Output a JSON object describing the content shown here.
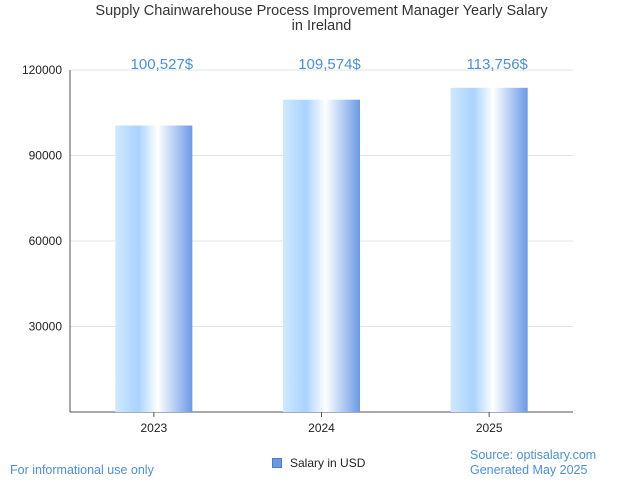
{
  "chart_data": {
    "type": "bar",
    "title_line1": "Supply Chainwarehouse Process Improvement Manager Yearly Salary",
    "title_line2": "in Ireland",
    "categories": [
      "2023",
      "2024",
      "2025"
    ],
    "series": [
      {
        "name": "Salary in USD",
        "values": [
          100527,
          109574,
          113756
        ]
      }
    ],
    "data_labels": [
      "100,527$",
      "109,574$",
      "113,756$"
    ],
    "y_ticks": [
      30000,
      60000,
      90000,
      120000
    ],
    "ylim": [
      0,
      120000
    ],
    "grid": true,
    "legend_position": "bottom",
    "bar_gradient": [
      "#ffffff",
      "#a8d4ff",
      "#ffffff",
      "#6a9ae6"
    ],
    "accent_color": "#4a90d9"
  },
  "footer": {
    "left": "For informational use only",
    "source": "Source: optisalary.com",
    "generated": "Generated May 2025"
  }
}
